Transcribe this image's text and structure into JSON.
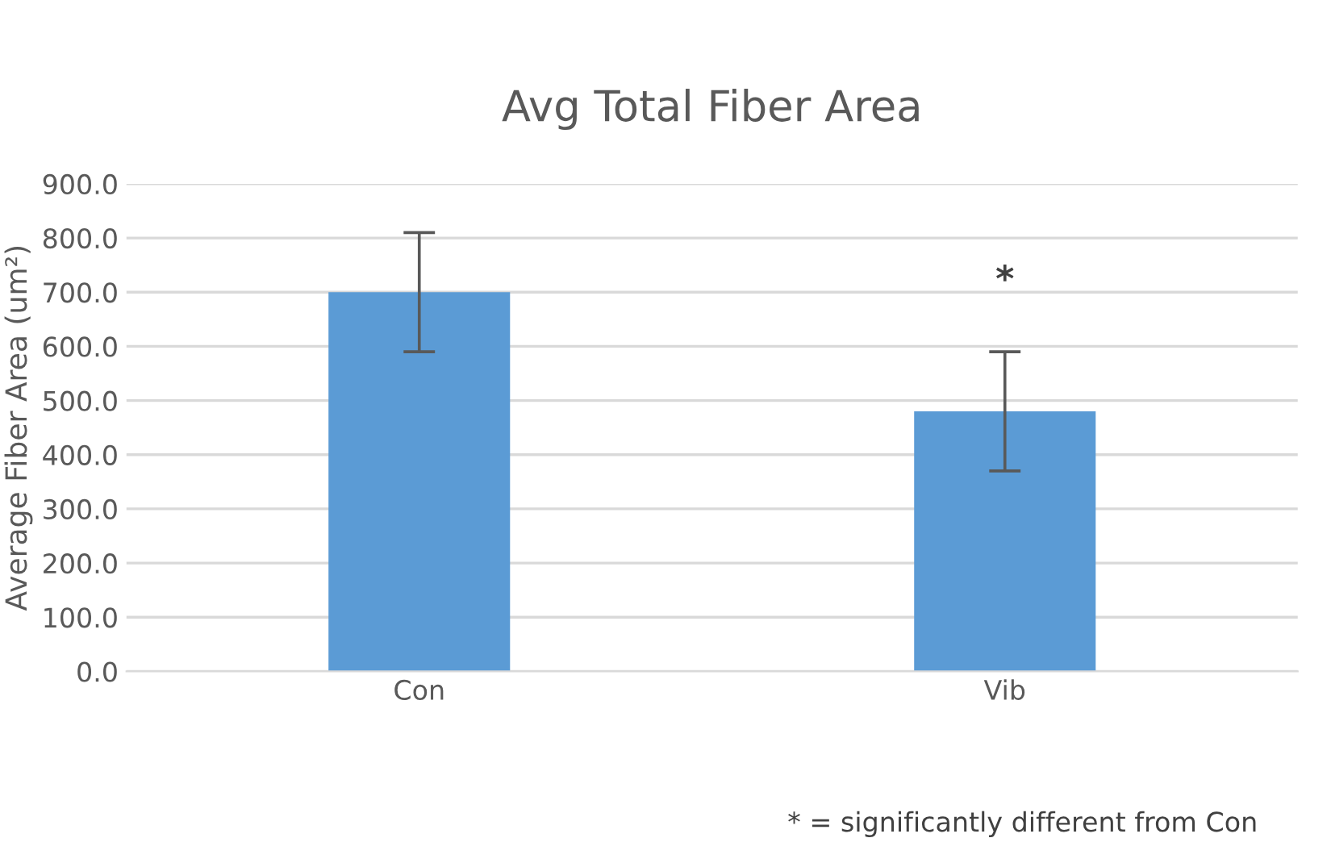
{
  "chart_data": {
    "type": "bar",
    "title": "Avg Total Fiber Area",
    "ylabel": "Average Fiber Area (um²)",
    "categories": [
      "Con",
      "Vib"
    ],
    "values": [
      700,
      480
    ],
    "errors": [
      110,
      110
    ],
    "color": "#5b9bd5",
    "ylim": [
      0,
      900
    ],
    "yticks": [
      {
        "value": 0,
        "label": "0.0"
      },
      {
        "value": 100,
        "label": "100.0"
      },
      {
        "value": 200,
        "label": "200.0"
      },
      {
        "value": 300,
        "label": "300.0"
      },
      {
        "value": 400,
        "label": "400.0"
      },
      {
        "value": 500,
        "label": "500.0"
      },
      {
        "value": 600,
        "label": "600.0"
      },
      {
        "value": 700,
        "label": "700.0"
      },
      {
        "value": 800,
        "label": "800.0"
      },
      {
        "value": 900,
        "label": "900.0"
      }
    ],
    "grid": "y",
    "legend": false,
    "annotations": [
      "*",
      "* = significantly different from Con"
    ]
  }
}
